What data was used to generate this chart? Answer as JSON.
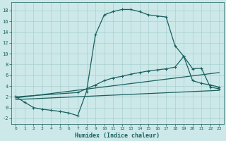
{
  "xlabel": "Humidex (Indice chaleur)",
  "xlim": [
    -0.5,
    23.5
  ],
  "ylim": [
    -3,
    19.5
  ],
  "xticks": [
    0,
    1,
    2,
    3,
    4,
    5,
    6,
    7,
    8,
    9,
    10,
    11,
    12,
    13,
    14,
    15,
    16,
    17,
    18,
    19,
    20,
    21,
    22,
    23
  ],
  "yticks": [
    -2,
    0,
    2,
    4,
    6,
    8,
    10,
    12,
    14,
    16,
    18
  ],
  "bg_color": "#cce8e8",
  "line_color": "#1a6060",
  "grid_color": "#aad0d0",
  "curve1_x": [
    0,
    1,
    2,
    3,
    4,
    5,
    6,
    7,
    8,
    9,
    10,
    11,
    12,
    13,
    14,
    15,
    16,
    17,
    18,
    19,
    20,
    21,
    22,
    23
  ],
  "curve1_y": [
    2.0,
    1.0,
    0.0,
    -0.3,
    -0.5,
    -0.7,
    -1.0,
    -1.5,
    3.0,
    13.5,
    17.2,
    17.8,
    18.2,
    18.2,
    17.8,
    17.2,
    17.0,
    16.8,
    11.5,
    9.5,
    5.0,
    4.5,
    4.2,
    3.8
  ],
  "curve2_x": [
    0,
    7,
    8,
    9,
    10,
    11,
    12,
    13,
    14,
    15,
    16,
    17,
    18,
    19,
    20,
    21,
    22,
    23
  ],
  "curve2_y": [
    2.0,
    2.8,
    3.5,
    4.2,
    5.0,
    5.5,
    5.8,
    6.2,
    6.5,
    6.8,
    7.0,
    7.2,
    7.5,
    9.5,
    7.2,
    7.3,
    3.8,
    3.5
  ],
  "curve3_x": [
    0,
    23
  ],
  "curve3_y": [
    1.8,
    6.5
  ],
  "curve4_x": [
    0,
    23
  ],
  "curve4_y": [
    1.5,
    3.2
  ],
  "figsize": [
    3.2,
    2.0
  ],
  "dpi": 100
}
